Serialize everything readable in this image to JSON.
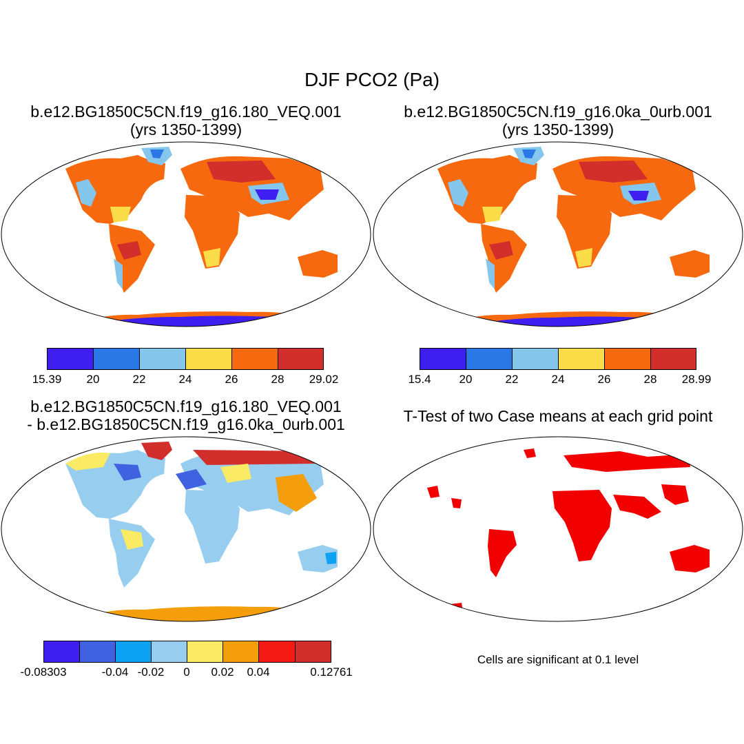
{
  "title": "DJF PCO2 (Pa)",
  "panels": [
    {
      "id": "case1",
      "title_line1": "b.e12.BG1850C5CN.f19_g16.180_VEQ.001",
      "title_line2": "(yrs 1350-1399)",
      "colorbar": {
        "colors": [
          "#3f1ff0",
          "#2a78e6",
          "#85c7ec",
          "#fbdd4a",
          "#f6690f",
          "#d22e2b"
        ],
        "labels": [
          "15.39",
          "20",
          "22",
          "24",
          "26",
          "28",
          "29.02"
        ]
      }
    },
    {
      "id": "case2",
      "title_line1": "b.e12.BG1850C5CN.f19_g16.0ka_0urb.001",
      "title_line2": "(yrs 1350-1399)",
      "colorbar": {
        "colors": [
          "#3f1ff0",
          "#2a78e6",
          "#85c7ec",
          "#fbdd4a",
          "#f6690f",
          "#d22e2b"
        ],
        "labels": [
          "15.4",
          "20",
          "22",
          "24",
          "26",
          "28",
          "28.99"
        ]
      }
    },
    {
      "id": "difference",
      "title_line1": "b.e12.BG1850C5CN.f19_g16.180_VEQ.001",
      "title_line2": "- b.e12.BG1850C5CN.f19_g16.0ka_0urb.001",
      "colorbar": {
        "colors": [
          "#3f1ff0",
          "#4062e0",
          "#0ea2f2",
          "#97cdee",
          "#fbea64",
          "#f59e0b",
          "#f41a14",
          "#d22e2b"
        ],
        "labels": [
          "-0.08303",
          "",
          "-0.04",
          "-0.02",
          "0",
          "0.02",
          "0.04",
          "",
          "0.12761"
        ]
      }
    },
    {
      "id": "ttest",
      "title_line1": "T-Test of two Case means at each grid point",
      "note": "Cells are significant at 0.1 level",
      "sig_color": "#f20000"
    }
  ]
}
